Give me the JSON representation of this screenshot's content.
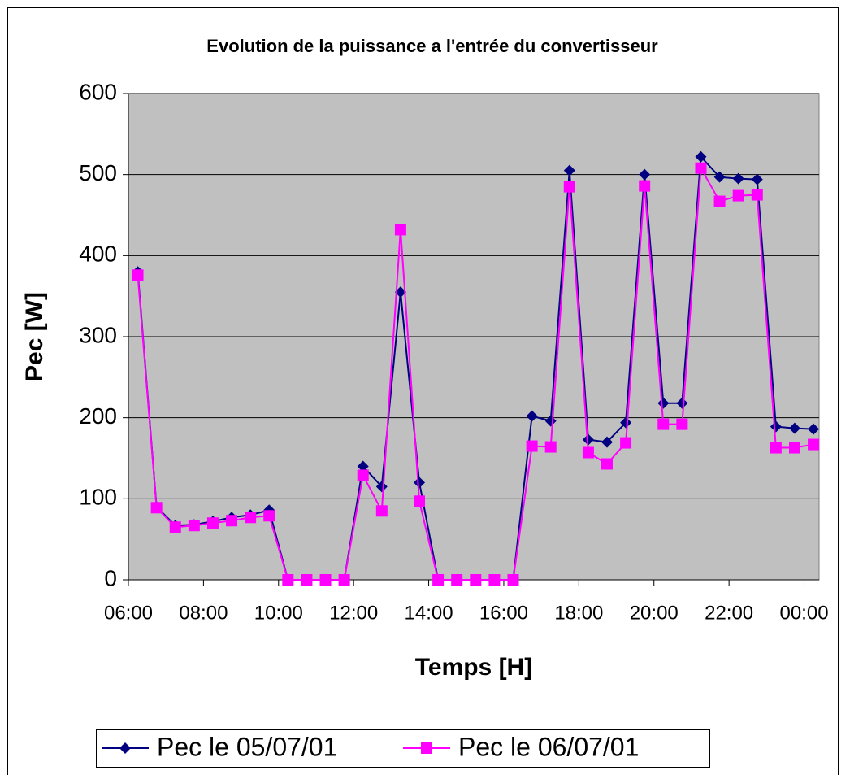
{
  "chart_data": {
    "type": "line",
    "title": "Evolution de la puissance a l'entrée du convertisseur",
    "xlabel": "Temps [H]",
    "ylabel": "Pec [W]",
    "x": [
      6.25,
      6.75,
      7.25,
      7.75,
      8.25,
      8.75,
      9.25,
      9.75,
      10.25,
      10.75,
      11.25,
      11.75,
      12.25,
      12.75,
      13.25,
      13.75,
      14.25,
      14.75,
      15.25,
      15.75,
      16.25,
      16.75,
      17.25,
      17.75,
      18.25,
      18.75,
      19.25,
      19.75,
      20.25,
      20.75,
      21.25,
      21.75,
      22.25,
      22.75,
      23.25,
      23.75,
      24.25
    ],
    "series": [
      {
        "name": "Pec le 05/07/01",
        "color": "#000080",
        "marker": "diamond",
        "values": [
          380,
          90,
          67,
          68,
          72,
          77,
          80,
          86,
          0,
          0,
          0,
          0,
          140,
          115,
          355,
          120,
          0,
          0,
          0,
          0,
          0,
          202,
          196,
          505,
          173,
          170,
          194,
          500,
          218,
          218,
          522,
          497,
          495,
          494,
          189,
          187,
          186
        ]
      },
      {
        "name": "Pec le 06/07/01",
        "color": "#ff00ff",
        "marker": "square",
        "values": [
          376,
          89,
          65,
          67,
          70,
          73,
          77,
          79,
          0,
          0,
          0,
          0,
          129,
          85,
          432,
          97,
          0,
          0,
          0,
          0,
          0,
          165,
          164,
          485,
          157,
          143,
          169,
          486,
          192,
          192,
          508,
          467,
          474,
          475,
          163,
          163,
          167
        ]
      }
    ],
    "xlim": [
      6,
      24.4
    ],
    "xticks": [
      {
        "value": 6,
        "label": "06:00"
      },
      {
        "value": 8,
        "label": "08:00"
      },
      {
        "value": 10,
        "label": "10:00"
      },
      {
        "value": 12,
        "label": "12:00"
      },
      {
        "value": 14,
        "label": "14:00"
      },
      {
        "value": 16,
        "label": "16:00"
      },
      {
        "value": 18,
        "label": "18:00"
      },
      {
        "value": 20,
        "label": "20:00"
      },
      {
        "value": 22,
        "label": "22:00"
      },
      {
        "value": 24,
        "label": "00:00"
      }
    ],
    "ylim": [
      0,
      600
    ],
    "yticks": [
      0,
      100,
      200,
      300,
      400,
      500,
      600
    ],
    "grid": true,
    "legend": "bottom",
    "plot_background": "#c0c0c0"
  }
}
